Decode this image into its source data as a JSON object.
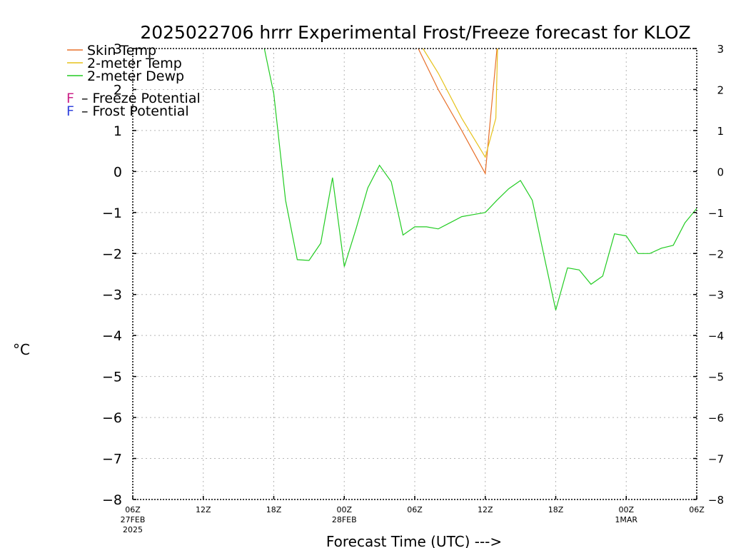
{
  "chart_data": {
    "type": "line",
    "title": "2025022706 hrrr Experimental Frost/Freeze forecast for KLOZ",
    "xlabel": "Forecast Time (UTC) --->",
    "ylabel": "°C",
    "ylim": [
      -8,
      3
    ],
    "y_ticks": [
      -8,
      -7,
      -6,
      -5,
      -4,
      -3,
      -2,
      -1,
      0,
      1,
      2,
      3
    ],
    "y_tick_labels": [
      "−8",
      "−7",
      "−6",
      "−5",
      "−4",
      "−3",
      "−2",
      "−1",
      "0",
      "1",
      "2",
      "3"
    ],
    "x_range_hours": [
      0,
      48
    ],
    "x_ticks": [
      {
        "hour": 0,
        "lines": [
          "06Z",
          "27FEB",
          "2025"
        ]
      },
      {
        "hour": 6,
        "lines": [
          "12Z"
        ]
      },
      {
        "hour": 12,
        "lines": [
          "18Z"
        ]
      },
      {
        "hour": 18,
        "lines": [
          "00Z",
          "28FEB"
        ]
      },
      {
        "hour": 24,
        "lines": [
          "06Z"
        ]
      },
      {
        "hour": 30,
        "lines": [
          "12Z"
        ]
      },
      {
        "hour": 36,
        "lines": [
          "18Z"
        ]
      },
      {
        "hour": 42,
        "lines": [
          "00Z",
          "1MAR"
        ]
      },
      {
        "hour": 48,
        "lines": [
          "06Z"
        ]
      }
    ],
    "grid": true,
    "legend_position": "top-left",
    "series": [
      {
        "name": "Skin Temp",
        "color": "#e8702a",
        "x": [
          24.3,
          26.0,
          28.0,
          30.0,
          31.0
        ],
        "y": [
          3.0,
          2.0,
          1.0,
          -0.05,
          3.0
        ]
      },
      {
        "name": "2-meter Temp",
        "color": "#e6c21a",
        "x": [
          24.7,
          26.0,
          28.0,
          30.0,
          30.9,
          31.05
        ],
        "y": [
          3.0,
          2.4,
          1.3,
          0.35,
          1.3,
          3.0
        ]
      },
      {
        "name": "2-meter Dewp",
        "color": "#22cc22",
        "x": [
          11.2,
          12,
          13,
          14,
          15,
          16,
          17,
          18,
          19,
          20,
          21,
          22,
          23,
          24,
          25,
          26,
          27,
          28,
          29,
          30,
          31,
          32,
          33,
          34,
          35,
          36,
          37,
          38,
          39,
          40,
          41,
          42,
          43,
          44,
          45,
          46,
          47,
          48
        ],
        "y": [
          3.0,
          1.9,
          -0.7,
          -2.15,
          -2.17,
          -1.75,
          -0.15,
          -2.32,
          -1.4,
          -0.4,
          0.15,
          -0.25,
          -1.55,
          -1.35,
          -1.35,
          -1.4,
          -1.25,
          -1.1,
          -1.05,
          -1.0,
          -0.7,
          -0.42,
          -0.22,
          -0.7,
          -2.05,
          -3.38,
          -2.35,
          -2.4,
          -2.75,
          -2.55,
          -1.52,
          -1.57,
          -2.0,
          -2.0,
          -1.87,
          -1.8,
          -1.25,
          -0.9
        ]
      }
    ],
    "legend_extra": [
      {
        "symbol": "F",
        "symbol_color": "#cc2288",
        "text": "– Freeze Potential"
      },
      {
        "symbol": "F",
        "symbol_color": "#3344dd",
        "text": "– Frost Potential"
      }
    ]
  }
}
